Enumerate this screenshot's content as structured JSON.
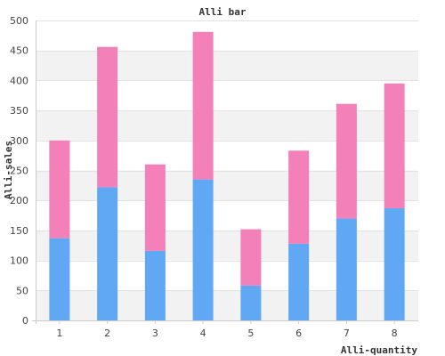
{
  "chart_data": {
    "type": "bar",
    "stacked": true,
    "title": "Alli bar",
    "xlabel": "Alli-quantity",
    "ylabel": "Alli-sales",
    "categories": [
      "1",
      "2",
      "3",
      "4",
      "5",
      "6",
      "7",
      "8"
    ],
    "series": [
      {
        "values": [
          137,
          222,
          116,
          235,
          58,
          128,
          170,
          187
        ],
        "color": "#60a8f4"
      },
      {
        "values": [
          163,
          234,
          144,
          246,
          94,
          155,
          191,
          208
        ],
        "color": "#f380b8"
      }
    ],
    "ylim": [
      0,
      500
    ],
    "yticks": [
      0,
      50,
      100,
      150,
      200,
      250,
      300,
      350,
      400,
      450,
      500
    ],
    "grid": true,
    "band_colors": [
      "#ffffff",
      "#f2f2f2"
    ],
    "legend": "none"
  }
}
